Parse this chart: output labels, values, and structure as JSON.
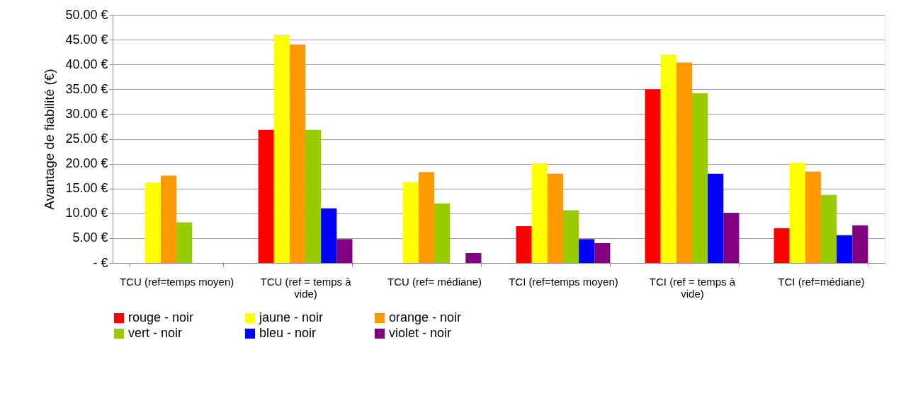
{
  "chart_data": {
    "type": "bar",
    "ylabel": "Avantage de fiabilité (€)",
    "categories": [
      "TCU (ref=temps moyen)",
      "TCU (ref = temps à vide)",
      "TCU (ref= médiane)",
      "TCI  (ref=temps moyen)",
      "TCI (ref = temps à vide)",
      "TCI (ref=médiane)"
    ],
    "series": [
      {
        "name": "rouge - noir",
        "color": "#ff0000",
        "values": [
          null,
          26.8,
          null,
          7.4,
          35.0,
          7.0
        ]
      },
      {
        "name": "jaune - noir",
        "color": "#ffff00",
        "values": [
          16.2,
          46.0,
          16.3,
          20.1,
          42.0,
          20.2
        ]
      },
      {
        "name": "orange - noir",
        "color": "#ff9900",
        "values": [
          17.6,
          44.0,
          18.3,
          18.0,
          40.4,
          18.4
        ]
      },
      {
        "name": "vert - noir",
        "color": "#99cc00",
        "values": [
          8.2,
          26.8,
          12.0,
          10.6,
          34.2,
          13.7
        ]
      },
      {
        "name": "bleu - noir",
        "color": "#0000ff",
        "values": [
          null,
          11.0,
          null,
          4.8,
          18.0,
          5.6
        ]
      },
      {
        "name": "violet - noir",
        "color": "#800080",
        "values": [
          null,
          4.8,
          2.0,
          4.0,
          10.1,
          7.6
        ]
      }
    ],
    "ylim": [
      0,
      50
    ],
    "yticks": [
      {
        "value": 0,
        "label": "-   €"
      },
      {
        "value": 5,
        "label": "5.00 €"
      },
      {
        "value": 10,
        "label": "10.00 €"
      },
      {
        "value": 15,
        "label": "15.00 €"
      },
      {
        "value": 20,
        "label": "20.00 €"
      },
      {
        "value": 25,
        "label": "25.00 €"
      },
      {
        "value": 30,
        "label": "30.00 €"
      },
      {
        "value": 35,
        "label": "35.00 €"
      },
      {
        "value": 40,
        "label": "40.00 €"
      },
      {
        "value": 45,
        "label": "45.00 €"
      },
      {
        "value": 50,
        "label": "50.00 €"
      }
    ],
    "grid": "y",
    "legend": "bottom"
  }
}
